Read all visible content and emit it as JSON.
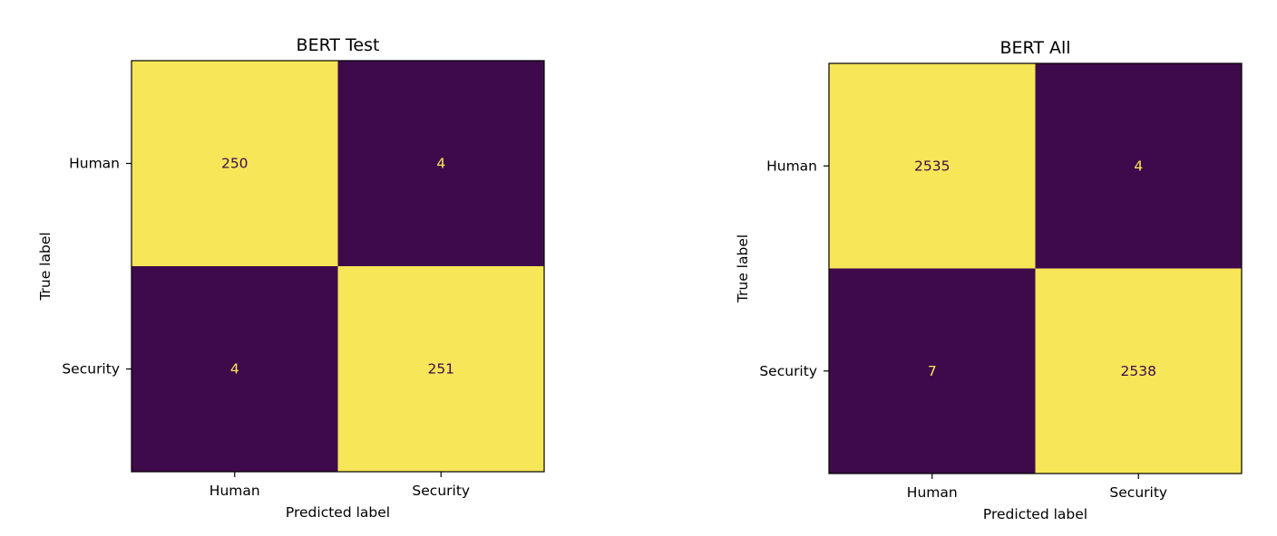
{
  "colors": {
    "high": "#f7e657",
    "low": "#3f0a4b",
    "text_on_high": "#3f0a4b",
    "text_on_low": "#f7e657"
  },
  "chart_data": [
    {
      "type": "heatmap",
      "title": "BERT Test",
      "xlabel": "Predicted label",
      "ylabel": "True label",
      "x_categories": [
        "Human",
        "Security"
      ],
      "y_categories": [
        "Human",
        "Security"
      ],
      "values": [
        [
          250,
          4
        ],
        [
          4,
          251
        ]
      ],
      "grid": false,
      "colorbar": false
    },
    {
      "type": "heatmap",
      "title": "BERT All",
      "xlabel": "Predicted label",
      "ylabel": "True label",
      "x_categories": [
        "Human",
        "Security"
      ],
      "y_categories": [
        "Human",
        "Security"
      ],
      "values": [
        [
          2535,
          4
        ],
        [
          7,
          2538
        ]
      ],
      "grid": false,
      "colorbar": false
    }
  ]
}
